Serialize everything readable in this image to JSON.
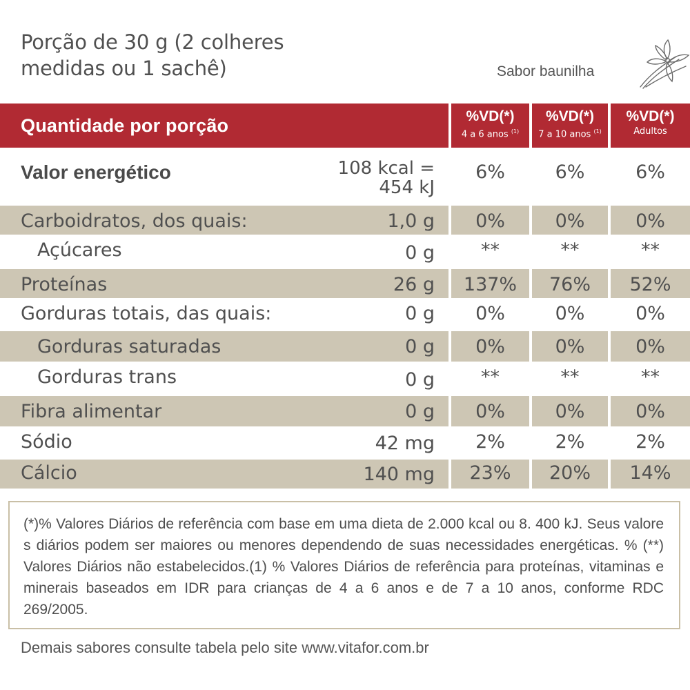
{
  "portion": "Porção de 30 g (2 colheres medidas ou 1 sachê)",
  "flavor": "Sabor baunilha",
  "header": {
    "title": "Quantidade por porção",
    "vd_label": "%VD(*)",
    "col1": {
      "sub": "4 a 6 anos",
      "note": "(1)"
    },
    "col2": {
      "sub": "7 a 10 anos",
      "note": "(1)"
    },
    "col3": {
      "sub": "Adultos"
    }
  },
  "energy": {
    "label": "Valor energético",
    "qty_line1": "108 kcal =",
    "qty_line2": "454 kJ",
    "v1": "6%",
    "v2": "6%",
    "v3": "6%"
  },
  "rows": [
    {
      "label": "Carboidratos, dos quais:",
      "qty": "1,0 g",
      "v1": "0%",
      "v2": "0%",
      "v3": "0%"
    },
    {
      "label": "Açúcares",
      "qty": "0 g",
      "v1": "**",
      "v2": "**",
      "v3": "**"
    },
    {
      "label": "Proteínas",
      "qty": "26 g",
      "v1": "137%",
      "v2": "76%",
      "v3": "52%"
    },
    {
      "label": "Gorduras totais, das quais:",
      "qty": "0 g",
      "v1": "0%",
      "v2": "0%",
      "v3": "0%"
    },
    {
      "label": "Gorduras saturadas",
      "qty": "0 g",
      "v1": "0%",
      "v2": "0%",
      "v3": "0%"
    },
    {
      "label": "Gorduras trans",
      "qty": "0 g",
      "v1": "**",
      "v2": "**",
      "v3": "**"
    },
    {
      "label": "Fibra alimentar",
      "qty": "0 g",
      "v1": "0%",
      "v2": "0%",
      "v3": "0%"
    },
    {
      "label": "Sódio",
      "qty": "42 mg",
      "v1": "2%",
      "v2": "2%",
      "v3": "2%"
    },
    {
      "label": "Cálcio",
      "qty": "140 mg",
      "v1": "23%",
      "v2": "20%",
      "v3": "14%"
    }
  ],
  "footnote": "(*)% Valores Diários de referência com base em uma dieta de 2.000 kcal ou 8. 400 kJ. Seus valore s diários podem ser maiores ou menores dependendo de suas necessidades energéticas. % (**) Valores Diários não estabelecidos.(1) % Valores Diários de referência para proteínas, vitaminas e minerais baseados em IDR para crianças de 4 a 6 anos e de 7 a 10 anos, conforme RDC 269/2005.",
  "more_info": "Demais sabores consulte tabela pelo site www.vitafor.com.br",
  "colors": {
    "header_red": "#b12a33",
    "shade": "#cdc6b4",
    "border": "#c9bfa6"
  },
  "icons": {
    "flavor": "vanilla-flower-icon"
  }
}
